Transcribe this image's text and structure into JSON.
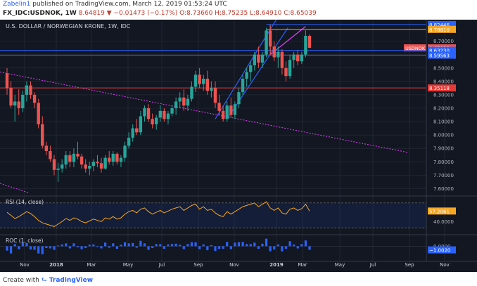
{
  "header": {
    "author": "Zabelin1",
    "published": "published on TradingView.com, March 12, 2019 01:53:24 UTC",
    "symbol": "FX_IDC:USDNOK, 1W",
    "ohlc": "8.64819 ▼ −0.01473 (−0.17%) O:8.73660 H:8.75235 L:8.64910 C:8.65039"
  },
  "footer": {
    "created_with": "Create with",
    "brand": "TradingView"
  },
  "colors": {
    "bg": "#131722",
    "up": "#26a69a",
    "down": "#ef5350",
    "grid": "#2a2e39",
    "axis_text": "#b2b5be",
    "blue_line": "#2962ff",
    "red_line": "#e53935",
    "orange_line": "#f5a623",
    "trend": "#e040fb",
    "rsi": "#f5a623",
    "roc": "#2962ff"
  },
  "chart_data": [
    {
      "type": "candlestick",
      "title": "U.S. DOLLAR / NORWEGIAN KRONE, 1W, IDC",
      "xlabel": "",
      "ylabel": "",
      "x_ticks": [
        "Nov",
        "2018",
        "Mar",
        "May",
        "Jul",
        "Sep",
        "Nov",
        "2019",
        "Mar",
        "May",
        "Jul",
        "Sep",
        "Nov"
      ],
      "y_ticks": [
        "8.70000",
        "8.60000",
        "8.50000",
        "8.40000",
        "8.30000",
        "8.20000",
        "8.10000",
        "8.00000",
        "7.90000",
        "7.80000",
        "7.70000",
        "7.60000"
      ],
      "ylim": [
        7.55,
        8.85
      ],
      "grid": true,
      "horizontal_levels": [
        {
          "label": "8.82446",
          "value": 8.82446,
          "color": "#2962ff"
        },
        {
          "label": "8.78810",
          "value": 8.7881,
          "color": "#f5a623"
        },
        {
          "label": "USDNOK · 8.65039",
          "value": 8.65039,
          "color": "#ef5350"
        },
        {
          "label": "8.63230",
          "value": 8.6323,
          "color": "#2962ff"
        },
        {
          "label": "8.59563",
          "value": 8.59563,
          "color": "#2962ff"
        },
        {
          "label": "8.35118",
          "value": 8.35118,
          "color": "#e53935"
        }
      ],
      "candles": [
        {
          "o": 8.46,
          "h": 8.5,
          "l": 8.3,
          "c": 8.35
        },
        {
          "o": 8.35,
          "h": 8.4,
          "l": 8.2,
          "c": 8.22
        },
        {
          "o": 8.22,
          "h": 8.3,
          "l": 8.1,
          "c": 8.25
        },
        {
          "o": 8.25,
          "h": 8.34,
          "l": 8.15,
          "c": 8.2
        },
        {
          "o": 8.2,
          "h": 8.33,
          "l": 8.17,
          "c": 8.3
        },
        {
          "o": 8.3,
          "h": 8.4,
          "l": 8.25,
          "c": 8.37
        },
        {
          "o": 8.37,
          "h": 8.4,
          "l": 8.27,
          "c": 8.3
        },
        {
          "o": 8.3,
          "h": 8.32,
          "l": 8.2,
          "c": 8.24
        },
        {
          "o": 8.24,
          "h": 8.27,
          "l": 8.05,
          "c": 8.08
        },
        {
          "o": 8.08,
          "h": 8.14,
          "l": 7.9,
          "c": 7.92
        },
        {
          "o": 7.92,
          "h": 7.95,
          "l": 7.85,
          "c": 7.88
        },
        {
          "o": 7.88,
          "h": 7.92,
          "l": 7.8,
          "c": 7.82
        },
        {
          "o": 7.82,
          "h": 7.85,
          "l": 7.7,
          "c": 7.74
        },
        {
          "o": 7.74,
          "h": 7.79,
          "l": 7.65,
          "c": 7.75
        },
        {
          "o": 7.75,
          "h": 7.82,
          "l": 7.72,
          "c": 7.78
        },
        {
          "o": 7.78,
          "h": 7.88,
          "l": 7.75,
          "c": 7.85
        },
        {
          "o": 7.85,
          "h": 7.88,
          "l": 7.76,
          "c": 7.8
        },
        {
          "o": 7.8,
          "h": 7.9,
          "l": 7.76,
          "c": 7.86
        },
        {
          "o": 7.86,
          "h": 7.95,
          "l": 7.82,
          "c": 7.84
        },
        {
          "o": 7.84,
          "h": 7.86,
          "l": 7.75,
          "c": 7.78
        },
        {
          "o": 7.78,
          "h": 7.82,
          "l": 7.72,
          "c": 7.75
        },
        {
          "o": 7.75,
          "h": 7.8,
          "l": 7.7,
          "c": 7.77
        },
        {
          "o": 7.77,
          "h": 7.82,
          "l": 7.73,
          "c": 7.8
        },
        {
          "o": 7.8,
          "h": 7.85,
          "l": 7.76,
          "c": 7.79
        },
        {
          "o": 7.79,
          "h": 7.83,
          "l": 7.72,
          "c": 7.75
        },
        {
          "o": 7.75,
          "h": 7.85,
          "l": 7.74,
          "c": 7.83
        },
        {
          "o": 7.83,
          "h": 7.88,
          "l": 7.78,
          "c": 7.8
        },
        {
          "o": 7.8,
          "h": 7.88,
          "l": 7.77,
          "c": 7.86
        },
        {
          "o": 7.86,
          "h": 7.87,
          "l": 7.78,
          "c": 7.8
        },
        {
          "o": 7.8,
          "h": 7.85,
          "l": 7.76,
          "c": 7.83
        },
        {
          "o": 7.83,
          "h": 7.95,
          "l": 7.8,
          "c": 7.92
        },
        {
          "o": 7.92,
          "h": 8.02,
          "l": 7.9,
          "c": 7.98
        },
        {
          "o": 7.98,
          "h": 8.08,
          "l": 7.95,
          "c": 8.05
        },
        {
          "o": 8.05,
          "h": 8.12,
          "l": 8.0,
          "c": 8.02
        },
        {
          "o": 8.02,
          "h": 8.18,
          "l": 8.0,
          "c": 8.14
        },
        {
          "o": 8.14,
          "h": 8.22,
          "l": 8.1,
          "c": 8.2
        },
        {
          "o": 8.2,
          "h": 8.23,
          "l": 8.1,
          "c": 8.12
        },
        {
          "o": 8.12,
          "h": 8.16,
          "l": 8.05,
          "c": 8.08
        },
        {
          "o": 8.08,
          "h": 8.15,
          "l": 8.04,
          "c": 8.13
        },
        {
          "o": 8.13,
          "h": 8.22,
          "l": 8.1,
          "c": 8.18
        },
        {
          "o": 8.18,
          "h": 8.2,
          "l": 8.1,
          "c": 8.12
        },
        {
          "o": 8.12,
          "h": 8.18,
          "l": 8.08,
          "c": 8.16
        },
        {
          "o": 8.16,
          "h": 8.22,
          "l": 8.14,
          "c": 8.2
        },
        {
          "o": 8.2,
          "h": 8.28,
          "l": 8.15,
          "c": 8.25
        },
        {
          "o": 8.25,
          "h": 8.32,
          "l": 8.2,
          "c": 8.28
        },
        {
          "o": 8.28,
          "h": 8.34,
          "l": 8.18,
          "c": 8.22
        },
        {
          "o": 8.22,
          "h": 8.3,
          "l": 8.18,
          "c": 8.27
        },
        {
          "o": 8.27,
          "h": 8.4,
          "l": 8.25,
          "c": 8.36
        },
        {
          "o": 8.36,
          "h": 8.48,
          "l": 8.32,
          "c": 8.45
        },
        {
          "o": 8.45,
          "h": 8.5,
          "l": 8.35,
          "c": 8.38
        },
        {
          "o": 8.38,
          "h": 8.45,
          "l": 8.33,
          "c": 8.42
        },
        {
          "o": 8.42,
          "h": 8.48,
          "l": 8.3,
          "c": 8.33
        },
        {
          "o": 8.33,
          "h": 8.4,
          "l": 8.28,
          "c": 8.35
        },
        {
          "o": 8.35,
          "h": 8.4,
          "l": 8.2,
          "c": 8.24
        },
        {
          "o": 8.24,
          "h": 8.3,
          "l": 8.15,
          "c": 8.18
        },
        {
          "o": 8.18,
          "h": 8.22,
          "l": 8.1,
          "c": 8.12
        },
        {
          "o": 8.12,
          "h": 8.25,
          "l": 8.1,
          "c": 8.22
        },
        {
          "o": 8.22,
          "h": 8.28,
          "l": 8.13,
          "c": 8.15
        },
        {
          "o": 8.15,
          "h": 8.25,
          "l": 8.12,
          "c": 8.23
        },
        {
          "o": 8.23,
          "h": 8.35,
          "l": 8.2,
          "c": 8.32
        },
        {
          "o": 8.32,
          "h": 8.45,
          "l": 8.3,
          "c": 8.42
        },
        {
          "o": 8.42,
          "h": 8.5,
          "l": 8.36,
          "c": 8.47
        },
        {
          "o": 8.47,
          "h": 8.55,
          "l": 8.4,
          "c": 8.52
        },
        {
          "o": 8.52,
          "h": 8.62,
          "l": 8.48,
          "c": 8.6
        },
        {
          "o": 8.6,
          "h": 8.66,
          "l": 8.5,
          "c": 8.54
        },
        {
          "o": 8.54,
          "h": 8.62,
          "l": 8.5,
          "c": 8.6
        },
        {
          "o": 8.6,
          "h": 8.8,
          "l": 8.58,
          "c": 8.78
        },
        {
          "o": 8.78,
          "h": 8.82,
          "l": 8.6,
          "c": 8.66
        },
        {
          "o": 8.66,
          "h": 8.7,
          "l": 8.55,
          "c": 8.58
        },
        {
          "o": 8.58,
          "h": 8.66,
          "l": 8.5,
          "c": 8.62
        },
        {
          "o": 8.62,
          "h": 8.64,
          "l": 8.45,
          "c": 8.5
        },
        {
          "o": 8.5,
          "h": 8.55,
          "l": 8.4,
          "c": 8.44
        },
        {
          "o": 8.44,
          "h": 8.6,
          "l": 8.42,
          "c": 8.56
        },
        {
          "o": 8.56,
          "h": 8.62,
          "l": 8.5,
          "c": 8.6
        },
        {
          "o": 8.6,
          "h": 8.63,
          "l": 8.52,
          "c": 8.55
        },
        {
          "o": 8.55,
          "h": 8.62,
          "l": 8.53,
          "c": 8.6
        },
        {
          "o": 8.6,
          "h": 8.78,
          "l": 8.58,
          "c": 8.74
        },
        {
          "o": 8.74,
          "h": 8.75,
          "l": 8.65,
          "c": 8.65
        }
      ]
    },
    {
      "type": "line",
      "title": "RSI (14, close)",
      "last_value_label": "57.2061",
      "y_ticks": [
        "40.0000"
      ],
      "ylim": [
        20,
        80
      ],
      "band": [
        30,
        70
      ],
      "values": [
        55,
        50,
        45,
        48,
        52,
        56,
        53,
        48,
        42,
        38,
        36,
        34,
        32,
        36,
        40,
        45,
        42,
        46,
        44,
        40,
        38,
        41,
        44,
        42,
        40,
        46,
        44,
        48,
        44,
        46,
        52,
        56,
        58,
        54,
        60,
        62,
        56,
        52,
        55,
        58,
        54,
        57,
        60,
        62,
        64,
        58,
        62,
        66,
        68,
        60,
        64,
        58,
        60,
        54,
        50,
        48,
        56,
        52,
        56,
        60,
        64,
        66,
        68,
        70,
        64,
        68,
        72,
        62,
        58,
        62,
        54,
        52,
        60,
        62,
        58,
        61,
        68,
        57
      ]
    },
    {
      "type": "bar",
      "title": "ROC (1, close)",
      "last_value_label": "−1.0020",
      "y_ticks": [
        "0.0000"
      ],
      "ylim": [
        -4,
        3
      ],
      "values": [
        -1.2,
        -2.0,
        0.6,
        -0.8,
        1.0,
        0.9,
        -0.9,
        -1.0,
        -2.0,
        -2.2,
        -0.5,
        -0.6,
        -1.0,
        0.2,
        0.5,
        0.8,
        -0.6,
        0.8,
        -0.3,
        -0.8,
        -0.5,
        0.4,
        0.5,
        -0.2,
        -0.6,
        1.0,
        -0.4,
        0.8,
        -0.7,
        0.4,
        1.1,
        0.8,
        0.9,
        -0.4,
        1.5,
        0.8,
        -1.0,
        -0.5,
        0.6,
        0.6,
        -0.7,
        0.5,
        0.6,
        0.7,
        0.4,
        -0.8,
        0.6,
        1.1,
        1.1,
        -0.8,
        0.5,
        -1.1,
        0.3,
        -1.3,
        -0.7,
        -0.7,
        1.2,
        -0.8,
        1.0,
        1.1,
        1.2,
        0.6,
        0.6,
        1.0,
        -0.7,
        0.7,
        2.1,
        -1.4,
        -0.9,
        0.5,
        -1.4,
        -0.7,
        1.4,
        0.5,
        -0.6,
        0.6,
        1.6,
        -1.0
      ]
    }
  ]
}
